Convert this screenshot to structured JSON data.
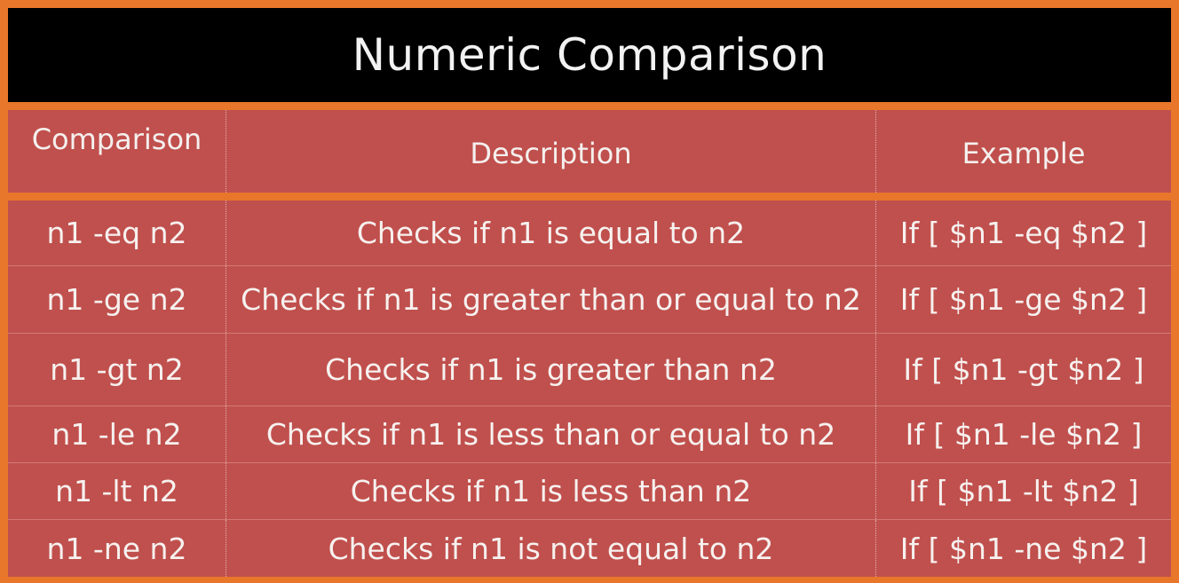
{
  "title": "Numeric Comparison",
  "columns": [
    "Comparison",
    "Description",
    "Example"
  ],
  "rows": [
    {
      "comparison": "n1 -eq n2",
      "description": "Checks if n1 is equal to n2",
      "example": "If [ $n1 -eq $n2 ]"
    },
    {
      "comparison": "n1 -ge n2",
      "description": "Checks if n1 is greater than or equal to n2",
      "example": "If [ $n1 -ge $n2 ]"
    },
    {
      "comparison": "n1 -gt n2",
      "description": "Checks if n1 is greater than n2",
      "example": "If [ $n1 -gt $n2 ]"
    },
    {
      "comparison": "n1 -le n2",
      "description": "Checks if n1 is less than or equal to n2",
      "example": "If [ $n1 -le $n2 ]"
    },
    {
      "comparison": "n1 -lt n2",
      "description": "Checks if n1 is less than n2",
      "example": "If [ $n1 -lt $n2 ]"
    },
    {
      "comparison": "n1 -ne n2",
      "description": "Checks if n1 is not equal to n2",
      "example": "If [ $n1 -ne $n2 ]"
    }
  ],
  "colors": {
    "border": "#e8762b",
    "title_background": "#000000",
    "cell_background": "#c0504d",
    "text": "#f4f0ee"
  }
}
